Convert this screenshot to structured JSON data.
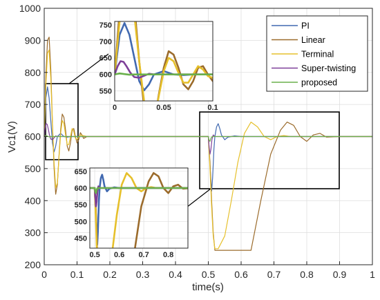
{
  "chart_data": [
    {
      "type": "line",
      "title": "",
      "xlabel": "time(s)",
      "ylabel": "Vc1(V)",
      "xlim": [
        0,
        1
      ],
      "ylim": [
        200,
        1000
      ],
      "xticks": [
        0,
        0.1,
        0.2,
        0.3,
        0.4,
        0.5,
        0.6,
        0.7,
        0.8,
        0.9,
        1
      ],
      "xtick_labels": [
        "0",
        "0.1",
        "0.2",
        "0.3",
        "0.4",
        "0.5",
        "0.6",
        "0.7",
        "0.8",
        "0.9",
        "1"
      ],
      "yticks": [
        200,
        300,
        400,
        500,
        600,
        700,
        800,
        900,
        1000
      ],
      "ytick_labels": [
        "200",
        "300",
        "400",
        "500",
        "600",
        "700",
        "800",
        "900",
        "1000"
      ],
      "grid": true,
      "legend_position": "top-right",
      "series": [
        {
          "name": "PI",
          "color": "#4169b0",
          "x": [
            0,
            0.005,
            0.01,
            0.015,
            0.02,
            0.025,
            0.03,
            0.035,
            0.04,
            0.05,
            0.06,
            0.07,
            0.08,
            0.09,
            0.1,
            0.12,
            0.15,
            0.5,
            0.503,
            0.507,
            0.51,
            0.513,
            0.517,
            0.52,
            0.525,
            0.53,
            0.535,
            0.54,
            0.55,
            0.56,
            0.58,
            0.6,
            1
          ],
          "y": [
            600,
            720,
            755,
            720,
            650,
            580,
            552,
            570,
            600,
            610,
            600,
            598,
            600,
            600,
            600,
            600,
            600,
            600,
            548,
            480,
            430,
            470,
            560,
            600,
            630,
            640,
            625,
            605,
            590,
            598,
            602,
            600,
            600
          ]
        },
        {
          "name": "Linear",
          "color": "#9b6b2b",
          "x": [
            0,
            0.005,
            0.01,
            0.015,
            0.02,
            0.025,
            0.03,
            0.035,
            0.04,
            0.045,
            0.05,
            0.055,
            0.06,
            0.065,
            0.07,
            0.075,
            0.08,
            0.085,
            0.09,
            0.095,
            0.1,
            0.105,
            0.11,
            0.115,
            0.12,
            0.13,
            0.15,
            0.5,
            0.505,
            0.51,
            0.515,
            0.52,
            0.53,
            0.63,
            0.66,
            0.69,
            0.72,
            0.74,
            0.76,
            0.78,
            0.8,
            0.82,
            0.84,
            0.86,
            0.9,
            1
          ],
          "y": [
            600,
            790,
            900,
            910,
            810,
            640,
            500,
            420,
            450,
            540,
            620,
            670,
            660,
            620,
            570,
            555,
            580,
            620,
            625,
            600,
            580,
            590,
            612,
            605,
            594,
            600,
            600,
            600,
            520,
            400,
            300,
            245,
            245,
            245,
            400,
            545,
            620,
            645,
            635,
            600,
            585,
            605,
            610,
            598,
            600,
            600
          ]
        },
        {
          "name": "Terminal",
          "color": "#e6c02b",
          "x": [
            0,
            0.005,
            0.01,
            0.015,
            0.02,
            0.025,
            0.03,
            0.035,
            0.04,
            0.045,
            0.05,
            0.055,
            0.06,
            0.065,
            0.07,
            0.075,
            0.08,
            0.085,
            0.09,
            0.095,
            0.1,
            0.11,
            0.13,
            0.15,
            0.5,
            0.505,
            0.51,
            0.515,
            0.52,
            0.53,
            0.55,
            0.57,
            0.59,
            0.61,
            0.63,
            0.65,
            0.67,
            0.69,
            0.71,
            0.73,
            0.75,
            1
          ],
          "y": [
            600,
            760,
            860,
            870,
            780,
            640,
            520,
            440,
            455,
            535,
            610,
            650,
            640,
            605,
            575,
            575,
            600,
            625,
            615,
            595,
            590,
            605,
            600,
            600,
            600,
            500,
            380,
            290,
            250,
            250,
            290,
            400,
            520,
            610,
            645,
            630,
            600,
            590,
            600,
            603,
            600,
            600
          ]
        },
        {
          "name": "Super-twisting",
          "color": "#7d3f98",
          "x": [
            0,
            0.003,
            0.006,
            0.009,
            0.012,
            0.016,
            0.02,
            0.025,
            0.03,
            0.035,
            0.04,
            0.05,
            0.06,
            0.07,
            0.1,
            0.5,
            0.502,
            0.505,
            0.508,
            0.511,
            0.515,
            0.52,
            0.53,
            0.55,
            1
          ],
          "y": [
            600,
            625,
            640,
            638,
            625,
            605,
            592,
            590,
            596,
            602,
            600,
            600,
            600,
            600,
            600,
            600,
            575,
            545,
            560,
            590,
            605,
            600,
            600,
            600,
            600
          ]
        },
        {
          "name": "proposed",
          "color": "#6ab04c",
          "x": [
            0,
            0.005,
            0.01,
            0.015,
            0.02,
            0.03,
            0.05,
            0.1,
            0.5,
            0.502,
            0.505,
            0.508,
            0.512,
            0.52,
            0.55,
            1
          ],
          "y": [
            600,
            603,
            601,
            599,
            600,
            600,
            600,
            600,
            600,
            590,
            585,
            595,
            600,
            600,
            600,
            600
          ]
        }
      ]
    },
    {
      "type": "line",
      "title": "",
      "inset": "top",
      "xlim": [
        0,
        0.1
      ],
      "ylim": [
        520,
        760
      ],
      "xticks": [
        0,
        0.05,
        0.1
      ],
      "xtick_labels": [
        "0",
        "0.05",
        "0.1"
      ],
      "yticks": [
        550,
        600,
        650,
        700,
        750
      ],
      "ytick_labels": [
        "550",
        "600",
        "650",
        "700",
        "750"
      ],
      "grid": true
    },
    {
      "type": "line",
      "title": "",
      "inset": "bottom",
      "xlim": [
        0.48,
        0.88
      ],
      "ylim": [
        420,
        660
      ],
      "xticks": [
        0.5,
        0.6,
        0.7,
        0.8
      ],
      "xtick_labels": [
        "0.5",
        "0.6",
        "0.7",
        "0.8"
      ],
      "yticks": [
        450,
        500,
        550,
        600,
        650
      ],
      "ytick_labels": [
        "450",
        "500",
        "550",
        "600",
        "650"
      ],
      "grid": true
    }
  ]
}
